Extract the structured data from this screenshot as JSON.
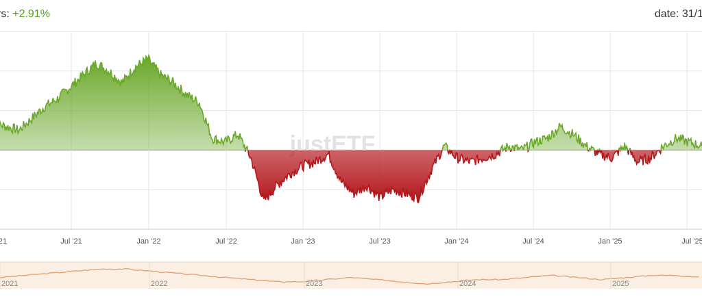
{
  "header": {
    "left_label": "rs: ",
    "left_value": "+2.91%",
    "right_label": "date: 31/1"
  },
  "watermark": "justETF",
  "colors": {
    "positive_line": "#6aa82a",
    "negative_line": "#b3161b",
    "positive_fill_top": "#6aa82a",
    "negative_fill_bottom": "#b3161b",
    "navigator_line": "#e0a070",
    "navigator_fill": "#fbeee3",
    "grid": "#e6e6e6",
    "baseline": "#999999"
  },
  "chart_data": {
    "type": "area",
    "title": "",
    "xlabel": "",
    "ylabel": "",
    "baseline": 0,
    "grid": true,
    "x_ticks": [
      "21",
      "Jul '21",
      "Jan '22",
      "Jul '22",
      "Jan '23",
      "Jul '23",
      "Jan '24",
      "Jul '24",
      "Jan '25",
      "Jul '25"
    ],
    "ylim": [
      -20,
      30
    ],
    "series": [
      {
        "x": [
          "2021-01",
          "2021-02",
          "2021-03",
          "2021-04",
          "2021-05",
          "2021-06",
          "2021-07",
          "2021-08",
          "2021-09",
          "2021-10",
          "2021-11",
          "2021-12",
          "2022-01",
          "2022-02",
          "2022-03",
          "2022-04",
          "2022-05",
          "2022-06",
          "2022-07",
          "2022-08",
          "2022-09",
          "2022-10",
          "2022-11",
          "2022-12",
          "2023-01",
          "2023-02",
          "2023-03",
          "2023-04",
          "2023-05",
          "2023-06",
          "2023-07",
          "2023-08",
          "2023-09",
          "2023-10",
          "2023-11",
          "2023-12",
          "2024-01",
          "2024-02",
          "2024-03",
          "2024-04",
          "2024-05",
          "2024-06",
          "2024-07",
          "2024-08",
          "2024-09",
          "2024-10",
          "2024-11",
          "2024-12",
          "2025-01",
          "2025-02",
          "2025-03",
          "2025-04",
          "2025-05",
          "2025-06",
          "2025-07",
          "2025-08"
        ],
        "values": [
          7,
          6,
          5,
          8,
          11,
          13,
          16,
          19,
          22,
          20,
          17,
          21,
          23,
          19,
          17,
          14,
          12,
          3,
          2,
          4,
          -2,
          -13,
          -9,
          -6,
          -4,
          -3,
          -1,
          -8,
          -11,
          -9,
          -12,
          -10,
          -11,
          -12,
          -5,
          1,
          -2,
          -3,
          -2,
          -1,
          1,
          0,
          2,
          3,
          6,
          4,
          1,
          -1,
          -2,
          1,
          -3,
          -2,
          1,
          3,
          2,
          1
        ]
      }
    ]
  },
  "navigator": {
    "labels": [
      "2021",
      "2022",
      "2023",
      "2024",
      "2025"
    ],
    "values": [
      100,
      101,
      102,
      103,
      104,
      104,
      103,
      102,
      101,
      100,
      99,
      98,
      98,
      99,
      100,
      99,
      98,
      97,
      98,
      99,
      99,
      100,
      101,
      100,
      99,
      100,
      101,
      101,
      100
    ]
  }
}
